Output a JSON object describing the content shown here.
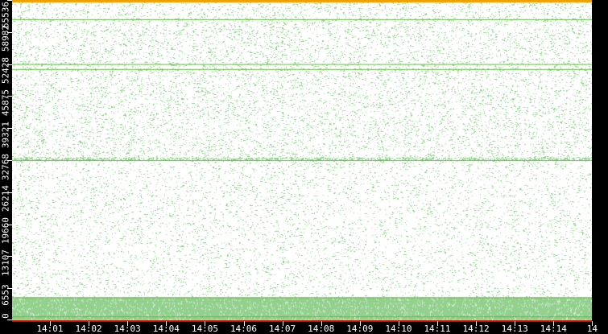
{
  "chart_data": {
    "type": "scatter",
    "title": "",
    "xlabel": "",
    "ylabel": "",
    "x_range": [
      "14:00",
      "14:15"
    ],
    "ylim": [
      0,
      65536
    ],
    "x_ticks": [
      "14:01",
      "14:02",
      "14:03",
      "14:04",
      "14:05",
      "14:06",
      "14:07",
      "14:08",
      "14:09",
      "14:10",
      "14:11",
      "14:12",
      "14:13",
      "14:14",
      "14"
    ],
    "y_ticks": [
      "0",
      "6553",
      "13107",
      "19660",
      "26214",
      "32768",
      "39321",
      "45875",
      "52428",
      "58982",
      "65536"
    ],
    "grid": false,
    "legend": "none",
    "colors": {
      "points": "#8fd18a",
      "dense_lines": "#5cb83a",
      "top_line": "#f0a000",
      "axis_line": "#e00000",
      "background": "#ffffff"
    },
    "density_regions": [
      {
        "y_from": 0,
        "y_to": 4700,
        "density": "very high"
      },
      {
        "y_from": 4700,
        "y_to": 32768,
        "density": "low"
      },
      {
        "y_from": 32768,
        "y_to": 33300,
        "density": "high"
      },
      {
        "y_from": 33300,
        "y_to": 65536,
        "density": "medium"
      }
    ],
    "highlight_lines": [
      800,
      4700,
      32768,
      51400,
      52428,
      61600,
      65535
    ]
  }
}
